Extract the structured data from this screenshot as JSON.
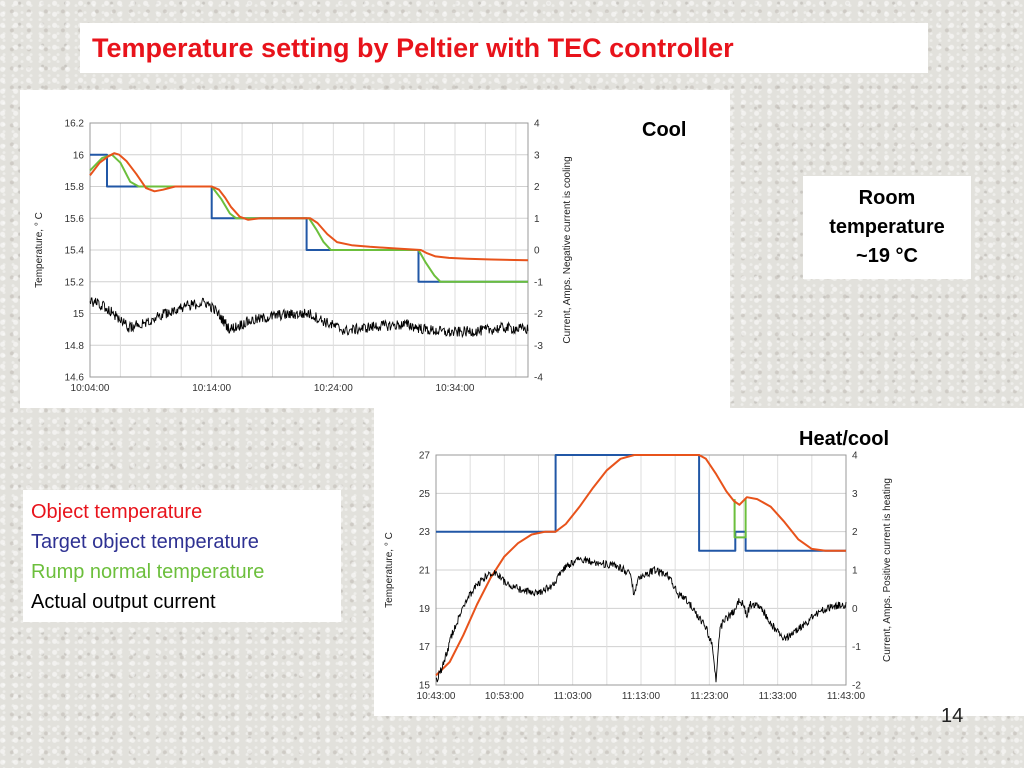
{
  "slide": {
    "title": "Temperature setting by Peltier with TEC controller",
    "cool_label": "Cool",
    "heatcool_label": "Heat/cool",
    "room_lines": [
      "Room",
      "temperature",
      "~19 °C"
    ],
    "page_number": "14",
    "legend": [
      {
        "label": "Object temperature",
        "color": "#e8131b"
      },
      {
        "label": "Target object temperature",
        "color": "#2e3192"
      },
      {
        "label": "Rump normal temperature",
        "color": "#6cbf3c"
      },
      {
        "label": "Actual output current",
        "color": "#000000"
      }
    ]
  },
  "chart_data": [
    {
      "type": "line",
      "label": "Cool",
      "ylabel": "Temperature, ° C",
      "y2label": "Current, Amps. Negative current is cooling",
      "x_domain_minutes": [
        0,
        36
      ],
      "x_ticks": [
        {
          "value": 0,
          "label": "10:04:00"
        },
        {
          "value": 10,
          "label": "10:14:00"
        },
        {
          "value": 20,
          "label": "10:24:00"
        },
        {
          "value": 30,
          "label": "10:34:00"
        }
      ],
      "ylim": [
        14.6,
        16.2
      ],
      "y_ticks": [
        "14.6",
        "14.8",
        "15",
        "15.2",
        "15.4",
        "15.6",
        "15.8",
        "16",
        "16.2"
      ],
      "y2lim": [
        -4,
        4
      ],
      "y2_ticks": [
        "-4",
        "-3",
        "-2",
        "-1",
        "0",
        "1",
        "2",
        "3",
        "4"
      ],
      "grid": true,
      "series": [
        {
          "color": "#2157a6",
          "kind": "target",
          "step": true,
          "points": [
            [
              0,
              16
            ],
            [
              1.4,
              16
            ],
            [
              1.4,
              15.8
            ],
            [
              10,
              15.8
            ],
            [
              10,
              15.6
            ],
            [
              17.8,
              15.6
            ],
            [
              17.8,
              15.4
            ],
            [
              27,
              15.4
            ],
            [
              27,
              15.2
            ],
            [
              36,
              15.2
            ]
          ]
        },
        {
          "color": "#6cbf3c",
          "kind": "ramp",
          "points": [
            [
              0,
              15.9
            ],
            [
              1,
              15.98
            ],
            [
              1.8,
              16
            ],
            [
              2.5,
              15.95
            ],
            [
              3.3,
              15.83
            ],
            [
              4,
              15.8
            ],
            [
              10,
              15.8
            ],
            [
              10.8,
              15.72
            ],
            [
              11.5,
              15.63
            ],
            [
              12,
              15.6
            ],
            [
              18,
              15.6
            ],
            [
              18.6,
              15.53
            ],
            [
              19.2,
              15.45
            ],
            [
              19.8,
              15.4
            ],
            [
              27,
              15.4
            ],
            [
              27.6,
              15.32
            ],
            [
              28.3,
              15.24
            ],
            [
              28.8,
              15.2
            ],
            [
              36,
              15.2
            ]
          ]
        },
        {
          "color": "#e8531b",
          "kind": "object",
          "points": [
            [
              0,
              15.87
            ],
            [
              0.8,
              15.95
            ],
            [
              1.5,
              15.99
            ],
            [
              2,
              16.01
            ],
            [
              2.4,
              16
            ],
            [
              3,
              15.96
            ],
            [
              3.8,
              15.88
            ],
            [
              4.6,
              15.79
            ],
            [
              5.3,
              15.77
            ],
            [
              6,
              15.78
            ],
            [
              7,
              15.8
            ],
            [
              10,
              15.8
            ],
            [
              10.6,
              15.78
            ],
            [
              11.1,
              15.73
            ],
            [
              11.6,
              15.67
            ],
            [
              12.3,
              15.61
            ],
            [
              13,
              15.59
            ],
            [
              14,
              15.6
            ],
            [
              18.1,
              15.6
            ],
            [
              18.7,
              15.57
            ],
            [
              19.5,
              15.5
            ],
            [
              20.3,
              15.45
            ],
            [
              21.5,
              15.43
            ],
            [
              23,
              15.42
            ],
            [
              25,
              15.41
            ],
            [
              27.2,
              15.4
            ],
            [
              27.7,
              15.38
            ],
            [
              28.4,
              15.36
            ],
            [
              29.5,
              15.35
            ],
            [
              31,
              15.345
            ],
            [
              33,
              15.34
            ],
            [
              36,
              15.335
            ]
          ]
        },
        {
          "color": "#000000",
          "kind": "current",
          "axis": "right",
          "noise": 0.17,
          "points": [
            [
              0,
              -1.6
            ],
            [
              1.5,
              -1.85
            ],
            [
              3.2,
              -2.45
            ],
            [
              5,
              -2.2
            ],
            [
              6.8,
              -1.9
            ],
            [
              8,
              -1.75
            ],
            [
              9.5,
              -1.65
            ],
            [
              10.3,
              -1.9
            ],
            [
              11.5,
              -2.5
            ],
            [
              13,
              -2.25
            ],
            [
              15.5,
              -2.05
            ],
            [
              18,
              -2
            ],
            [
              19.5,
              -2.3
            ],
            [
              21,
              -2.55
            ],
            [
              23.5,
              -2.4
            ],
            [
              26,
              -2.35
            ],
            [
              27.5,
              -2.5
            ],
            [
              29.5,
              -2.6
            ],
            [
              32,
              -2.55
            ],
            [
              34,
              -2.45
            ],
            [
              36,
              -2.5
            ]
          ]
        }
      ]
    },
    {
      "type": "line",
      "label": "Heat/cool",
      "ylabel": "Temperature, ° C",
      "y2label": "Current, Amps. Positive current is heating",
      "x_domain_minutes": [
        0,
        60
      ],
      "x_ticks": [
        {
          "value": 0,
          "label": "10:43:00"
        },
        {
          "value": 10,
          "label": "10:53:00"
        },
        {
          "value": 20,
          "label": "11:03:00"
        },
        {
          "value": 30,
          "label": "11:13:00"
        },
        {
          "value": 40,
          "label": "11:23:00"
        },
        {
          "value": 50,
          "label": "11:33:00"
        },
        {
          "value": 60,
          "label": "11:43:00"
        }
      ],
      "ylim": [
        15,
        27
      ],
      "y_ticks": [
        "15",
        "17",
        "19",
        "21",
        "23",
        "25",
        "27"
      ],
      "y2lim": [
        -2,
        4
      ],
      "y2_ticks": [
        "-2",
        "-1",
        "0",
        "1",
        "2",
        "3",
        "4"
      ],
      "grid": true,
      "series": [
        {
          "color": "#2157a6",
          "kind": "target",
          "step": true,
          "points": [
            [
              0,
              23
            ],
            [
              17.5,
              23
            ],
            [
              17.5,
              27
            ],
            [
              38.5,
              27
            ],
            [
              38.5,
              22
            ],
            [
              43.8,
              22
            ],
            [
              43.8,
              23
            ],
            [
              45.3,
              23
            ],
            [
              45.3,
              22
            ],
            [
              60,
              22
            ]
          ]
        },
        {
          "color": "#6cbf3c",
          "kind": "ramp",
          "points": [
            [
              43.7,
              24.7
            ],
            [
              43.7,
              22.7
            ],
            [
              45.3,
              22.7
            ],
            [
              45.3,
              24.7
            ]
          ]
        },
        {
          "color": "#e8531b",
          "kind": "object",
          "points": [
            [
              0,
              15.5
            ],
            [
              2,
              16.2
            ],
            [
              4,
              17.6
            ],
            [
              6,
              19.2
            ],
            [
              8,
              20.6
            ],
            [
              10,
              21.7
            ],
            [
              12,
              22.4
            ],
            [
              14,
              22.85
            ],
            [
              16,
              23
            ],
            [
              17.5,
              23
            ],
            [
              19,
              23.4
            ],
            [
              21,
              24.3
            ],
            [
              23,
              25.3
            ],
            [
              25,
              26.2
            ],
            [
              27,
              26.8
            ],
            [
              29,
              27
            ],
            [
              38.5,
              27
            ],
            [
              39.5,
              26.8
            ],
            [
              41,
              26
            ],
            [
              42.5,
              25.1
            ],
            [
              43.6,
              24.6
            ],
            [
              44.4,
              24.4
            ],
            [
              45.5,
              24.8
            ],
            [
              47,
              24.7
            ],
            [
              49,
              24.3
            ],
            [
              51,
              23.5
            ],
            [
              53,
              22.6
            ],
            [
              55,
              22.1
            ],
            [
              57,
              22
            ],
            [
              60,
              22
            ]
          ]
        },
        {
          "color": "#000000",
          "kind": "current",
          "axis": "right",
          "noise": 0.1,
          "points": [
            [
              0,
              -1.9
            ],
            [
              1,
              -1.5
            ],
            [
              2.5,
              -0.6
            ],
            [
              4,
              0.05
            ],
            [
              5.5,
              0.5
            ],
            [
              7,
              0.8
            ],
            [
              8.5,
              0.95
            ],
            [
              10,
              0.7
            ],
            [
              11.5,
              0.55
            ],
            [
              13,
              0.45
            ],
            [
              15,
              0.4
            ],
            [
              17,
              0.6
            ],
            [
              19,
              1.1
            ],
            [
              21,
              1.3
            ],
            [
              23,
              1.2
            ],
            [
              25,
              1.15
            ],
            [
              27,
              1.05
            ],
            [
              28.5,
              0.9
            ],
            [
              29,
              0.3
            ],
            [
              29.5,
              0.8
            ],
            [
              32,
              1.0
            ],
            [
              34,
              0.85
            ],
            [
              35.5,
              0.35
            ],
            [
              36.5,
              0.25
            ],
            [
              38,
              -0.1
            ],
            [
              39.5,
              -0.5
            ],
            [
              40.5,
              -1.0
            ],
            [
              41,
              -1.9
            ],
            [
              41.5,
              -0.6
            ],
            [
              42,
              -0.35
            ],
            [
              43.5,
              -0.1
            ],
            [
              44,
              0.05
            ],
            [
              44.5,
              0.25
            ],
            [
              45.5,
              -0.15
            ],
            [
              46,
              0.1
            ],
            [
              47.5,
              0.05
            ],
            [
              49,
              -0.4
            ],
            [
              51,
              -0.8
            ],
            [
              52.5,
              -0.6
            ],
            [
              54,
              -0.4
            ],
            [
              56,
              -0.1
            ],
            [
              58,
              0.05
            ],
            [
              60,
              0.1
            ]
          ]
        }
      ]
    }
  ]
}
